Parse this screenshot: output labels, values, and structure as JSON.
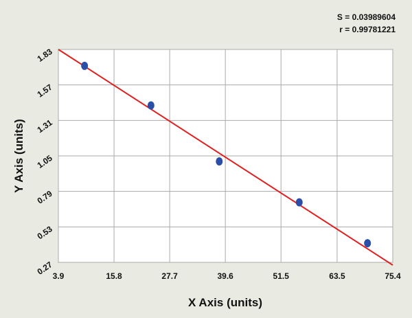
{
  "chart_data": {
    "type": "scatter",
    "x_label": "X Axis (units)",
    "y_label": "Y Axis (units)",
    "annotations": [
      "S = 0.03989604",
      "r = 0.99781221"
    ],
    "x": [
      9.5,
      23.7,
      38.3,
      55.4,
      70.0
    ],
    "series": [
      {
        "color": "#2b4fa8",
        "values": [
          1.71,
          1.42,
          1.01,
          0.71,
          0.41
        ]
      }
    ],
    "fit_line": {
      "color": "#e02020",
      "x": [
        3.9,
        75.4
      ],
      "y": [
        1.83,
        0.25
      ]
    },
    "xlim": [
      3.9,
      75.4
    ],
    "xticks": [
      3.9,
      15.8,
      27.7,
      39.6,
      51.5,
      63.5,
      75.4
    ],
    "ylim": [
      0.27,
      1.83
    ],
    "yticks": [
      0.27,
      0.53,
      0.79,
      1.05,
      1.31,
      1.57,
      1.83
    ],
    "grid": true
  }
}
